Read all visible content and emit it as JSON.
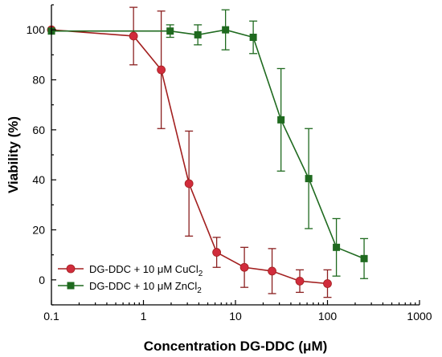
{
  "chart_data": {
    "type": "scatter",
    "xlabel": "Concentration DG-DDC (μM)",
    "ylabel": "Viability (%)",
    "xscale": "log",
    "xlim": [
      0.1,
      1000
    ],
    "ylim": [
      -10,
      110
    ],
    "x_ticks": [
      0.1,
      1,
      10,
      100,
      1000
    ],
    "x_tick_labels": [
      "0.1",
      "1",
      "10",
      "100",
      "1000"
    ],
    "y_ticks": [
      0,
      20,
      40,
      60,
      80,
      100
    ],
    "y_tick_labels": [
      "0",
      "20",
      "40",
      "60",
      "80",
      "100"
    ],
    "legend_position": "bottom-left",
    "series": [
      {
        "name_main": "DG-DDC + 10 μM CuCl",
        "name_sub": "2",
        "marker": "circle",
        "line_color": "#a32020",
        "marker_color": "#d12c3c",
        "errorbar_color": "#8b2020",
        "x": [
          0.1,
          0.78,
          1.56,
          3.125,
          6.25,
          12.5,
          25,
          50,
          100
        ],
        "y": [
          100,
          97.5,
          84,
          38.5,
          11,
          5,
          3.5,
          -0.5,
          -1.5
        ],
        "yerr": [
          0,
          11.5,
          23.5,
          21,
          6,
          8,
          9,
          4.5,
          5.5
        ]
      },
      {
        "name_main": "DG-DDC + 10 μM ZnCl",
        "name_sub": "2",
        "marker": "square",
        "line_color": "#1f6a1f",
        "marker_color": "#1f6a1f",
        "errorbar_color": "#1f6a1f",
        "x": [
          0.1,
          1.95,
          3.9,
          7.8,
          15.6,
          31.25,
          62.5,
          125,
          250
        ],
        "y": [
          99.5,
          99.5,
          98,
          100,
          97,
          64,
          40.5,
          13,
          8.5
        ],
        "yerr": [
          0,
          2.5,
          4,
          8,
          6.5,
          20.5,
          20,
          11.5,
          8
        ]
      }
    ]
  }
}
